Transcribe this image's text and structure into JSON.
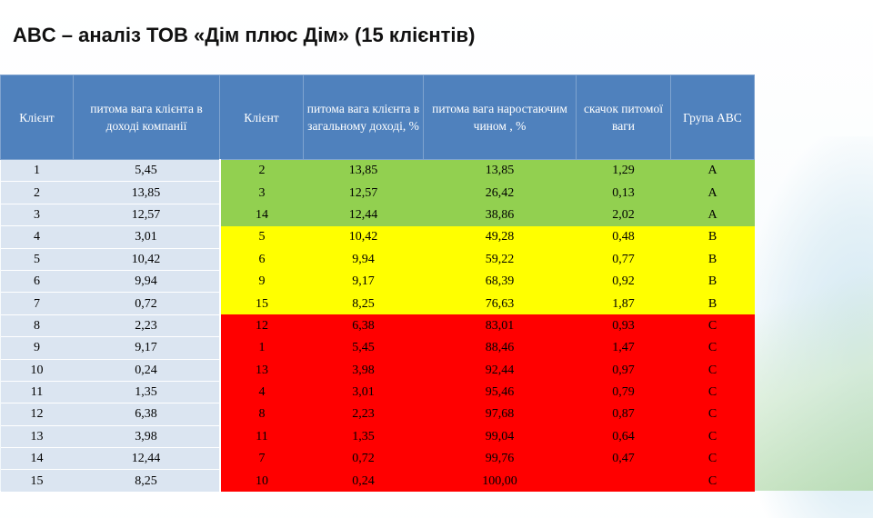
{
  "title": "ABC – аналіз ТОВ «Дім плюс Дім» (15 клієнтів)",
  "headers": [
    "Клієнт",
    "питома вага клієнта в доході компанії",
    "Клієнт",
    "питома вага клієнта в загальному доході, %",
    "питома вага наростаючим чином , %",
    "скачок питомої ваги",
    "Група ABC"
  ],
  "rows": [
    {
      "n": "1",
      "share": "5,45",
      "client": "2",
      "pct": "13,85",
      "cum": "13,85",
      "jump": "1,29",
      "group": "A"
    },
    {
      "n": "2",
      "share": "13,85",
      "client": "3",
      "pct": "12,57",
      "cum": "26,42",
      "jump": "0,13",
      "group": "A"
    },
    {
      "n": "3",
      "share": "12,57",
      "client": "14",
      "pct": "12,44",
      "cum": "38,86",
      "jump": "2,02",
      "group": "A"
    },
    {
      "n": "4",
      "share": "3,01",
      "client": "5",
      "pct": "10,42",
      "cum": "49,28",
      "jump": "0,48",
      "group": "B"
    },
    {
      "n": "5",
      "share": "10,42",
      "client": "6",
      "pct": "9,94",
      "cum": "59,22",
      "jump": "0,77",
      "group": "B"
    },
    {
      "n": "6",
      "share": "9,94",
      "client": "9",
      "pct": "9,17",
      "cum": "68,39",
      "jump": "0,92",
      "group": "B"
    },
    {
      "n": "7",
      "share": "0,72",
      "client": "15",
      "pct": "8,25",
      "cum": "76,63",
      "jump": "1,87",
      "group": "B"
    },
    {
      "n": "8",
      "share": "2,23",
      "client": "12",
      "pct": "6,38",
      "cum": "83,01",
      "jump": "0,93",
      "group": "C"
    },
    {
      "n": "9",
      "share": "9,17",
      "client": "1",
      "pct": "5,45",
      "cum": "88,46",
      "jump": "1,47",
      "group": "C"
    },
    {
      "n": "10",
      "share": "0,24",
      "client": "13",
      "pct": "3,98",
      "cum": "92,44",
      "jump": "0,97",
      "group": "C"
    },
    {
      "n": "11",
      "share": "1,35",
      "client": "4",
      "pct": "3,01",
      "cum": "95,46",
      "jump": "0,79",
      "group": "C"
    },
    {
      "n": "12",
      "share": "6,38",
      "client": "8",
      "pct": "2,23",
      "cum": "97,68",
      "jump": "0,87",
      "group": "C"
    },
    {
      "n": "13",
      "share": "3,98",
      "client": "11",
      "pct": "1,35",
      "cum": "99,04",
      "jump": "0,64",
      "group": "C"
    },
    {
      "n": "14",
      "share": "12,44",
      "client": "7",
      "pct": "0,72",
      "cum": "99,76",
      "jump": "0,47",
      "group": "C"
    },
    {
      "n": "15",
      "share": "8,25",
      "client": "10",
      "pct": "0,24",
      "cum": "100,00",
      "jump": "",
      "group": "C"
    }
  ],
  "colors": {
    "header": "#4f81bd",
    "light_cells": "#dbe5f1",
    "group_A": "#92d050",
    "group_B": "#ffff00",
    "group_C": "#ff0000"
  }
}
